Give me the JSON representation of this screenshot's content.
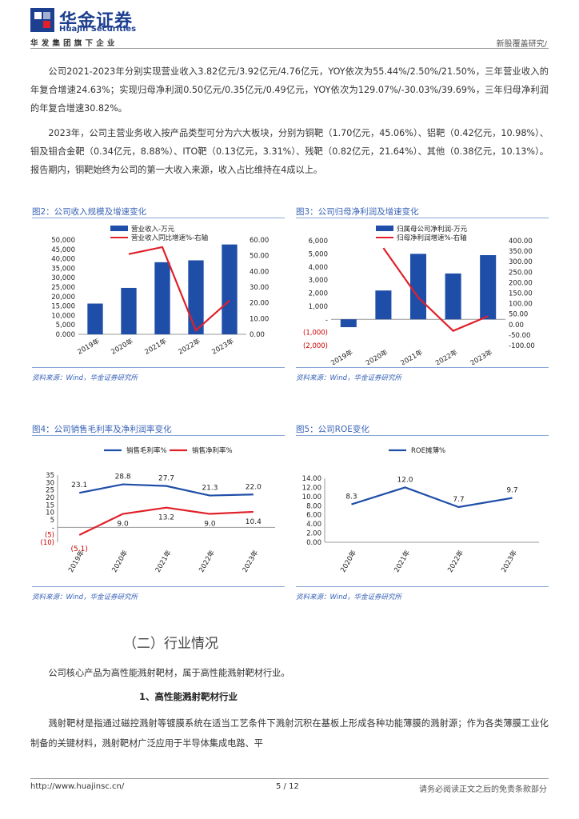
{
  "header": {
    "logo_cn": "华金证券",
    "logo_en": "Huajin Securities",
    "group_line": "华发集团旗下企业",
    "report_type": "新股覆盖研究/"
  },
  "paragraphs": [
    "公司2021-2023年分别实现营业收入3.82亿元/3.92亿元/4.76亿元，YOY依次为55.44%/2.50%/21.50%，三年营业收入的年复合增速24.63%；实现归母净利润0.50亿元/0.35亿元/0.49亿元，YOY依次为129.07%/-30.03%/39.69%，三年归母净利润的年复合增速30.82%。",
    "2023年，公司主营业务收入按产品类型可分为六大板块，分别为铜靶（1.70亿元，45.06%）、铝靶（0.42亿元，10.98%）、钼及钼合金靶（0.34亿元，8.88%）、ITO靶（0.13亿元，3.31%）、残靶（0.82亿元，21.64%）、其他（0.38亿元，10.13%）。报告期内，铜靶始终为公司的第一大收入来源，收入占比维持在4成以上。"
  ],
  "source_label": "资料来源：Wind，华金证券研究所",
  "section": {
    "title": "（二）行业情况",
    "intro": "公司核心产品为高性能溅射靶材，属于高性能溅射靶材行业。",
    "subtitle": "1、高性能溅射靶材行业",
    "body": "溅射靶材是指通过磁控溅射等镀膜系统在适当工艺条件下溅射沉积在基板上形成各种功能薄膜的溅射源；作为各类薄膜工业化制备的关键材料，溅射靶材广泛应用于半导体集成电路、平"
  },
  "footer": {
    "url": "http://www.huajinsc.cn/",
    "page": "5 / 12",
    "disclaimer": "请务必阅读正文之后的免责条款部分"
  },
  "colors": {
    "bar": "#1f4ea8",
    "line_red": "#e0202a",
    "blue_line": "#1f4ea8",
    "title": "#3a63b8"
  },
  "chart_data": [
    {
      "id": "fig2",
      "title": "图2：公司收入规模及增速变化",
      "type": "bar",
      "categories": [
        "2019年",
        "2020年",
        "2021年",
        "2022年",
        "2023年"
      ],
      "series": [
        {
          "name": "营业收入-万元",
          "type": "bar",
          "axis": "left",
          "values": [
            16300,
            24600,
            38200,
            39200,
            47600
          ]
        },
        {
          "name": "营业收入同比增速%-右轴",
          "type": "line",
          "axis": "right",
          "values": [
            null,
            51.0,
            55.44,
            2.5,
            21.5
          ]
        }
      ],
      "y_left": {
        "range": [
          0,
          50000
        ],
        "ticks": [
          "0.000",
          "5,000",
          "10,000",
          "15,000",
          "20,000",
          "25,000",
          "30,000",
          "35,000",
          "40,000",
          "45,000",
          "50,000"
        ]
      },
      "y_right": {
        "range": [
          0,
          60
        ],
        "ticks": [
          "0.00",
          "10.00",
          "20.00",
          "30.00",
          "40.00",
          "50.00",
          "60.00"
        ]
      }
    },
    {
      "id": "fig3",
      "title": "图3：公司归母净利润及增速变化",
      "type": "bar",
      "categories": [
        "2019年",
        "2020年",
        "2021年",
        "2022年",
        "2023年"
      ],
      "series": [
        {
          "name": "归属母公司净利润-万元",
          "type": "bar",
          "axis": "left",
          "values": [
            -600,
            2200,
            5000,
            3500,
            4900
          ]
        },
        {
          "name": "归母净利润增速%-右轴",
          "type": "line",
          "axis": "right",
          "values": [
            null,
            365,
            129.07,
            -30.03,
            39.69
          ]
        }
      ],
      "y_left": {
        "range": [
          -2000,
          6000
        ],
        "ticks": [
          "(2,000)",
          "(1,000)",
          "-",
          "1,000",
          "2,000",
          "3,000",
          "4,000",
          "5,000",
          "6,000"
        ]
      },
      "y_right": {
        "range": [
          -100,
          400
        ],
        "ticks": [
          "-100.00",
          "-50.00",
          "0.00",
          "50.00",
          "100.00",
          "150.00",
          "200.00",
          "250.00",
          "300.00",
          "350.00",
          "400.00"
        ]
      }
    },
    {
      "id": "fig4",
      "title": "图4：公司销售毛利率及净利润率变化",
      "type": "line",
      "categories": [
        "2019年",
        "2020年",
        "2021年",
        "2022年",
        "2023年"
      ],
      "series": [
        {
          "name": "销售毛利率%",
          "values": [
            23.1,
            28.8,
            27.7,
            21.3,
            22.0
          ],
          "labels": [
            "23.1",
            "28.8",
            "27.7",
            "21.3",
            "22.0"
          ]
        },
        {
          "name": "销售净利率%",
          "values": [
            -5.1,
            9.0,
            13.2,
            9.0,
            10.4
          ],
          "labels": [
            "(5.1)",
            "9.0",
            "13.2",
            "9.0",
            "10.4"
          ]
        }
      ],
      "y": {
        "range": [
          -10,
          35
        ],
        "ticks": [
          "(10)",
          "(5)",
          "-",
          "5",
          "10",
          "15",
          "20",
          "25",
          "30",
          "35"
        ]
      }
    },
    {
      "id": "fig5",
      "title": "图5：公司ROE变化",
      "type": "line",
      "categories": [
        "2020年",
        "2021年",
        "2022年",
        "2023年"
      ],
      "series": [
        {
          "name": "ROE摊薄%",
          "values": [
            8.3,
            12.0,
            7.7,
            9.7
          ],
          "labels": [
            "8.3",
            "12.0",
            "7.7",
            "9.7"
          ]
        }
      ],
      "y": {
        "range": [
          0,
          14
        ],
        "ticks": [
          "0.00",
          "2.00",
          "4.00",
          "6.00",
          "8.00",
          "10.00",
          "12.00",
          "14.00"
        ]
      }
    }
  ]
}
